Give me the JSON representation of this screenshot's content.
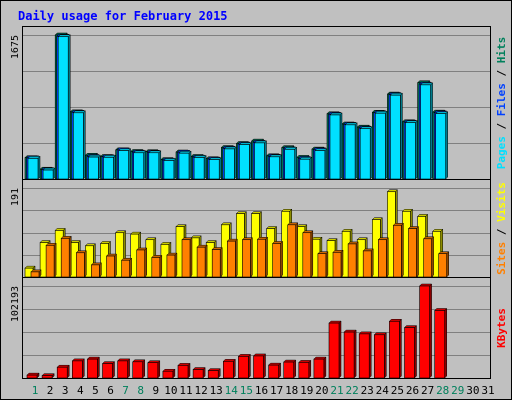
{
  "chart_data": [
    {
      "type": "bar",
      "panel": "pages-files-hits",
      "title": "Daily usage for February 2015",
      "y_max_label": "1675",
      "ylim": [
        0,
        1675
      ],
      "ylabel_parts": [
        {
          "text": "Pages",
          "color": "#00e0ff"
        },
        {
          "text": " / ",
          "color": "#000000"
        },
        {
          "text": "Files",
          "color": "#0040ff"
        },
        {
          "text": " / ",
          "color": "#000000"
        },
        {
          "text": "Hits",
          "color": "#00805c"
        }
      ],
      "series": [
        {
          "name": "Hits",
          "color": "#00805c",
          "values": [
            248,
            114,
            1675,
            781,
            276,
            262,
            339,
            320,
            318,
            226,
            314,
            262,
            236,
            366,
            413,
            441,
            270,
            365,
            251,
            348,
            759,
            640,
            603,
            776,
            988,
            666,
            1120,
            778
          ]
        },
        {
          "name": "Files",
          "color": "#0040ff",
          "values": [
            246,
            108,
            1660,
            776,
            262,
            258,
            339,
            313,
            311,
            220,
            311,
            254,
            232,
            357,
            406,
            426,
            265,
            351,
            239,
            340,
            753,
            636,
            592,
            770,
            982,
            661,
            1104,
            770
          ]
        },
        {
          "name": "Pages",
          "color": "#00e0ff",
          "values": [
            240,
            104,
            1655,
            770,
            255,
            252,
            330,
            305,
            305,
            215,
            300,
            250,
            225,
            350,
            400,
            420,
            258,
            345,
            230,
            330,
            745,
            630,
            585,
            765,
            975,
            655,
            1095,
            760
          ]
        }
      ]
    },
    {
      "type": "bar",
      "panel": "visits-sites",
      "y_max_label": "191",
      "ylim": [
        0,
        191
      ],
      "ylabel_parts": [
        {
          "text": "Sites",
          "color": "#ff8000"
        },
        {
          "text": " / ",
          "color": "#000000"
        },
        {
          "text": "Visits",
          "color": "#ffff00"
        }
      ],
      "series": [
        {
          "name": "Visits",
          "color": "#ffff00",
          "values": [
            19,
            74,
            100,
            74,
            67,
            72,
            95,
            92,
            80,
            70,
            108,
            84,
            74,
            112,
            136,
            136,
            104,
            141,
            108,
            81,
            78,
            98,
            80,
            123,
            183,
            141,
            130,
            98
          ]
        },
        {
          "name": "Sites",
          "color": "#ff8000",
          "values": [
            11,
            68,
            83,
            52,
            26,
            45,
            36,
            58,
            42,
            47,
            80,
            64,
            59,
            77,
            80,
            81,
            72,
            112,
            95,
            50,
            53,
            71,
            56,
            80,
            111,
            104,
            82,
            50
          ]
        }
      ]
    },
    {
      "type": "bar",
      "panel": "kbytes",
      "y_max_label": "102193",
      "ylim": [
        0,
        102193
      ],
      "ylabel_parts": [
        {
          "text": "KBytes",
          "color": "#ff0000"
        }
      ],
      "series": [
        {
          "name": "KBytes",
          "color": "#ff0000",
          "values": [
            3200,
            2600,
            12000,
            19000,
            21000,
            16000,
            19000,
            18000,
            17000,
            7500,
            14000,
            9400,
            8200,
            18500,
            24000,
            24500,
            14300,
            17700,
            17300,
            21000,
            61000,
            51000,
            49000,
            48000,
            63000,
            56000,
            102193,
            75000
          ]
        }
      ]
    }
  ],
  "days": [
    "1",
    "2",
    "3",
    "4",
    "5",
    "6",
    "7",
    "8",
    "9",
    "10",
    "11",
    "12",
    "13",
    "14",
    "15",
    "16",
    "17",
    "18",
    "19",
    "20",
    "21",
    "22",
    "23",
    "24",
    "25",
    "26",
    "27",
    "28",
    "29",
    "30",
    "31"
  ],
  "weekend_days": [
    1,
    7,
    8,
    14,
    15,
    21,
    22,
    28,
    29
  ],
  "colors": {
    "background": "#c0c0c0",
    "title": "#0000ff",
    "grid": "#808080",
    "weekday_label": "#000000",
    "weekend_label": "#00805c"
  }
}
